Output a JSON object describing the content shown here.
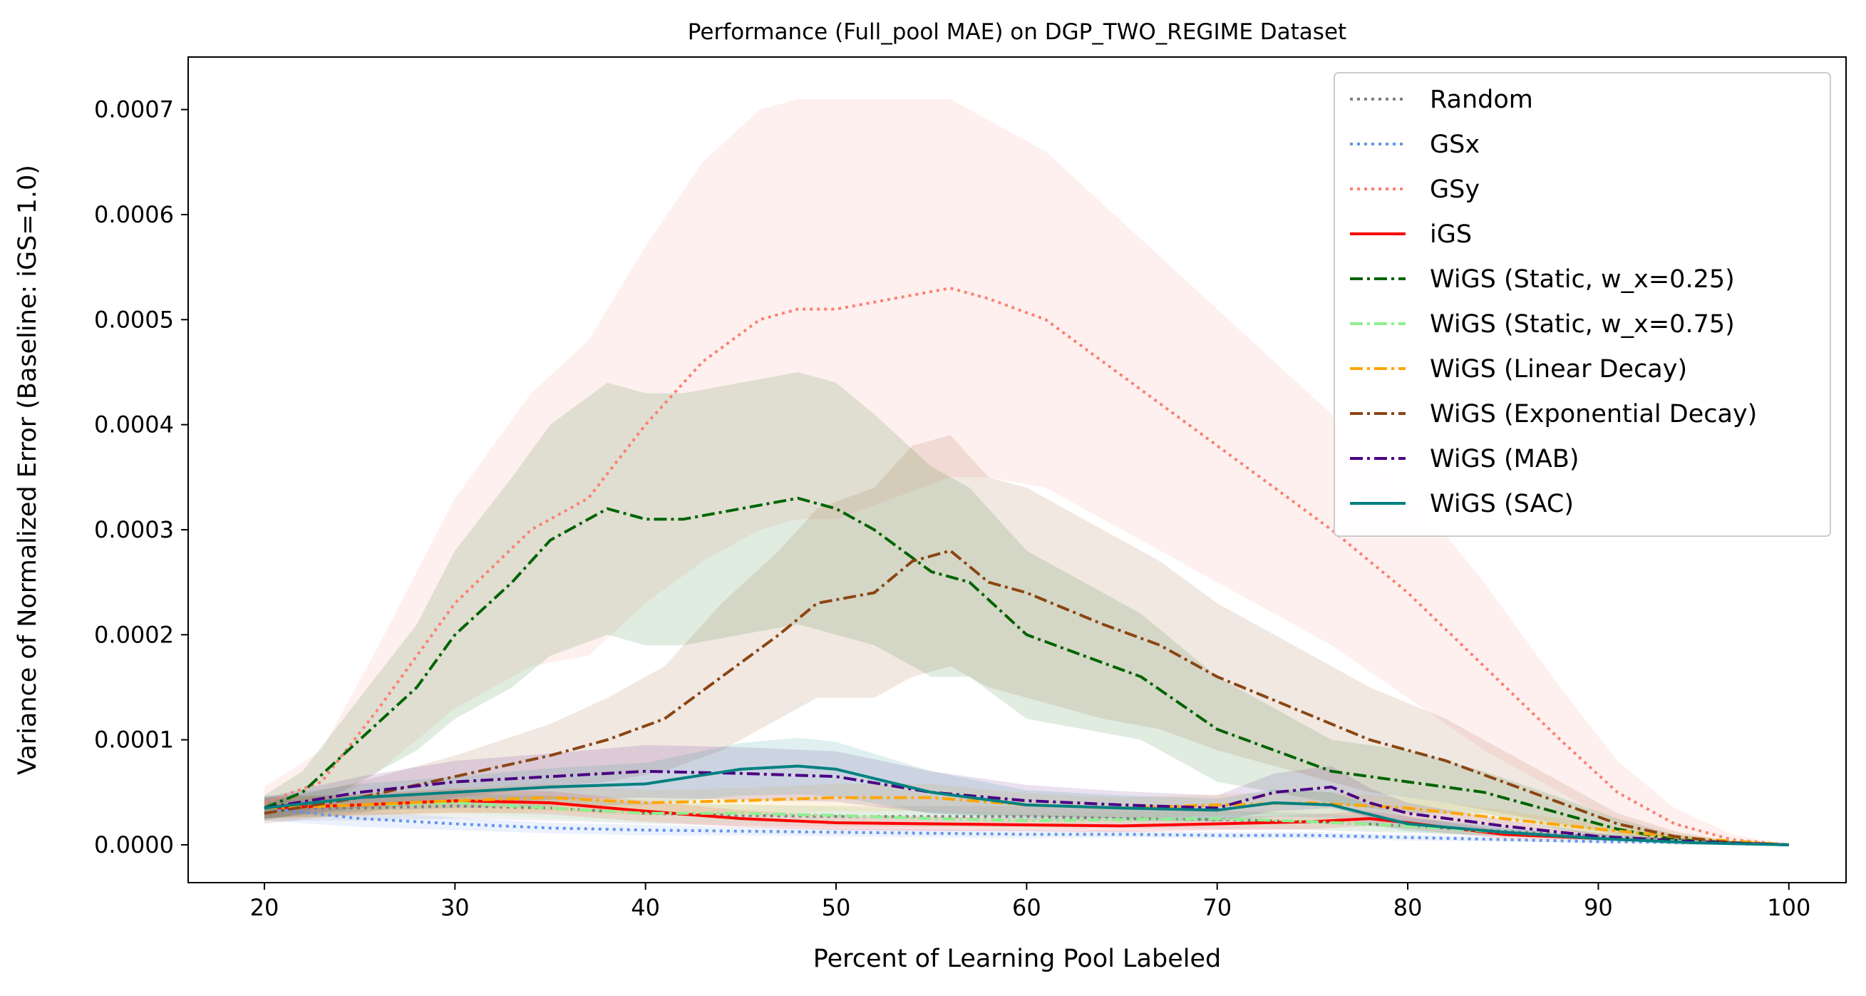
{
  "chart_data": {
    "type": "line",
    "title": "Performance (Full_pool MAE) on DGP_TWO_REGIME Dataset",
    "xlabel": "Percent of Learning Pool Labeled",
    "ylabel": "Variance of Normalized Error (Baseline: iGS=1.0)",
    "xlim": [
      16,
      103
    ],
    "ylim": [
      -3.6e-05,
      0.00075
    ],
    "x_ticks": [
      20,
      30,
      40,
      50,
      60,
      70,
      80,
      90,
      100
    ],
    "x_tick_labels": [
      "20",
      "30",
      "40",
      "50",
      "60",
      "70",
      "80",
      "90",
      "100"
    ],
    "y_ticks": [
      0,
      0.0001,
      0.0002,
      0.0003,
      0.0004,
      0.0005,
      0.0006,
      0.0007
    ],
    "y_tick_labels": [
      "0.0000",
      "0.0001",
      "0.0002",
      "0.0003",
      "0.0004",
      "0.0005",
      "0.0006",
      "0.0007"
    ],
    "grid": false,
    "legend_position": "top-right",
    "series": [
      {
        "name": "Random",
        "color": "#808080",
        "dash": "dotted",
        "x": [
          20,
          25,
          30,
          35,
          40,
          45,
          50,
          55,
          60,
          65,
          70,
          75,
          80,
          85,
          90,
          95,
          100
        ],
        "y": [
          3.5e-05,
          3.5e-05,
          3.7e-05,
          3.5e-05,
          3e-05,
          2.8e-05,
          2.7e-05,
          2.7e-05,
          2.7e-05,
          2.5e-05,
          2.4e-05,
          2.2e-05,
          1.8e-05,
          1.3e-05,
          8e-06,
          4e-06,
          0.0
        ],
        "band": [
          1.2e-05,
          1.2e-05,
          1.2e-05,
          1.2e-05,
          1e-05,
          1e-05,
          1e-05,
          1e-05,
          1e-05,
          9e-06,
          9e-06,
          8e-06,
          7e-06,
          5e-06,
          3e-06,
          2e-06,
          0.0
        ]
      },
      {
        "name": "GSx",
        "color": "#6495ED",
        "dash": "dotted",
        "x": [
          20,
          25,
          30,
          35,
          40,
          45,
          50,
          55,
          60,
          65,
          70,
          75,
          80,
          85,
          90,
          95,
          100
        ],
        "y": [
          3.5e-05,
          2.5e-05,
          2e-05,
          1.6e-05,
          1.4e-05,
          1.3e-05,
          1.2e-05,
          1.1e-05,
          1e-05,
          1e-05,
          9e-06,
          9e-06,
          7e-06,
          5e-06,
          3e-06,
          2e-06,
          0.0
        ],
        "band": [
          1.2e-05,
          8e-06,
          6e-06,
          5e-06,
          5e-06,
          4e-06,
          4e-06,
          4e-06,
          4e-06,
          3e-06,
          3e-06,
          3e-06,
          3e-06,
          2e-06,
          1e-06,
          1e-06,
          0.0
        ]
      },
      {
        "name": "GSy",
        "color": "#FA8072",
        "dash": "dotted",
        "x": [
          20,
          23,
          26,
          30,
          34,
          37,
          40,
          43,
          46,
          48,
          50,
          53,
          56,
          58,
          61,
          64,
          67,
          70,
          73,
          76,
          80,
          84,
          88,
          91,
          94,
          97,
          100
        ],
        "y": [
          4e-05,
          6e-05,
          0.00013,
          0.00023,
          0.0003,
          0.00033,
          0.0004,
          0.00046,
          0.0005,
          0.00051,
          0.00051,
          0.00052,
          0.00053,
          0.00052,
          0.0005,
          0.00046,
          0.00042,
          0.00038,
          0.00034,
          0.0003,
          0.00024,
          0.00017,
          0.0001,
          5e-05,
          2e-05,
          5e-06,
          0.0
        ],
        "band": [
          1.5e-05,
          3e-05,
          6e-05,
          0.0001,
          0.00013,
          0.00015,
          0.00017,
          0.00019,
          0.0002,
          0.0002,
          0.0002,
          0.00019,
          0.00018,
          0.00017,
          0.00016,
          0.00015,
          0.00014,
          0.00013,
          0.00012,
          0.00011,
          0.0001,
          8e-05,
          5e-05,
          3e-05,
          1.5e-05,
          5e-06,
          0.0
        ]
      },
      {
        "name": "iGS",
        "color": "#FF0000",
        "dash": "solid",
        "x": [
          20,
          25,
          30,
          35,
          40,
          45,
          50,
          55,
          60,
          65,
          70,
          75,
          78,
          80,
          85,
          90,
          95,
          100
        ],
        "y": [
          3.5e-05,
          3.8e-05,
          4.2e-05,
          4e-05,
          3.2e-05,
          2.5e-05,
          2.1e-05,
          2e-05,
          1.9e-05,
          1.8e-05,
          2e-05,
          2.2e-05,
          2.5e-05,
          2.1e-05,
          1e-05,
          6e-06,
          3e-06,
          0.0
        ],
        "band": [
          1e-05,
          1e-05,
          1.1e-05,
          1.1e-05,
          1e-05,
          8e-06,
          7e-06,
          7e-06,
          6e-06,
          6e-06,
          6e-06,
          7e-06,
          7e-06,
          6e-06,
          4e-06,
          2e-06,
          1e-06,
          0.0
        ]
      },
      {
        "name": "WiGS (Static, w_x=0.25)",
        "color": "#006400",
        "dash": "dashdot",
        "x": [
          20,
          22,
          25,
          28,
          30,
          33,
          35,
          38,
          40,
          42,
          45,
          48,
          50,
          52,
          55,
          57,
          60,
          63,
          66,
          70,
          73,
          76,
          80,
          84,
          88,
          91,
          94,
          97,
          100
        ],
        "y": [
          3.5e-05,
          5e-05,
          0.0001,
          0.00015,
          0.0002,
          0.00025,
          0.00029,
          0.00032,
          0.00031,
          0.00031,
          0.00032,
          0.00033,
          0.00032,
          0.0003,
          0.00026,
          0.00025,
          0.0002,
          0.00018,
          0.00016,
          0.00011,
          9e-05,
          7e-05,
          6e-05,
          5e-05,
          3e-05,
          1.5e-05,
          5e-06,
          2e-06,
          0.0
        ],
        "band": [
          1.2e-05,
          2e-05,
          4e-05,
          6e-05,
          8e-05,
          0.0001,
          0.00011,
          0.00012,
          0.00012,
          0.00012,
          0.00012,
          0.00012,
          0.00012,
          0.00011,
          0.0001,
          9e-05,
          8e-05,
          7e-05,
          6e-05,
          5e-05,
          4e-05,
          3e-05,
          3e-05,
          2e-05,
          1.5e-05,
          1e-05,
          5e-06,
          2e-06,
          0.0
        ]
      },
      {
        "name": "WiGS (Static, w_x=0.75)",
        "color": "#90EE90",
        "dash": "dashdot",
        "x": [
          20,
          25,
          30,
          35,
          40,
          45,
          50,
          55,
          60,
          65,
          70,
          75,
          80,
          85,
          90,
          95,
          100
        ],
        "y": [
          3.5e-05,
          3.8e-05,
          4e-05,
          3.5e-05,
          3e-05,
          3e-05,
          2.8e-05,
          2.5e-05,
          2.3e-05,
          2.4e-05,
          2.5e-05,
          2.2e-05,
          1.8e-05,
          1.2e-05,
          6e-06,
          3e-06,
          0.0
        ],
        "band": [
          1e-05,
          1e-05,
          1e-05,
          1e-05,
          9e-06,
          9e-06,
          8e-06,
          8e-06,
          7e-06,
          7e-06,
          7e-06,
          7e-06,
          6e-06,
          4e-06,
          2e-06,
          1e-06,
          0.0
        ]
      },
      {
        "name": "WiGS (Linear Decay)",
        "color": "#FFA500",
        "dash": "dashdot",
        "x": [
          20,
          25,
          30,
          35,
          40,
          45,
          50,
          55,
          60,
          65,
          70,
          75,
          80,
          85,
          90,
          95,
          100
        ],
        "y": [
          3.5e-05,
          3.8e-05,
          4.2e-05,
          4.5e-05,
          4e-05,
          4.2e-05,
          4.5e-05,
          4.5e-05,
          3.8e-05,
          3.5e-05,
          3.8e-05,
          4e-05,
          3.5e-05,
          2.5e-05,
          1.5e-05,
          6e-06,
          0.0
        ],
        "band": [
          1e-05,
          1e-05,
          1.2e-05,
          1.3e-05,
          1.2e-05,
          1.2e-05,
          1.3e-05,
          1.3e-05,
          1.1e-05,
          1e-05,
          1e-05,
          1.1e-05,
          1e-05,
          8e-06,
          5e-06,
          2e-06,
          0.0
        ]
      },
      {
        "name": "WiGS (Exponential Decay)",
        "color": "#8B4513",
        "dash": "dashdot",
        "x": [
          20,
          25,
          30,
          35,
          38,
          41,
          44,
          47,
          49,
          52,
          54,
          56,
          58,
          60,
          64,
          67,
          70,
          74,
          78,
          82,
          85,
          88,
          91,
          94,
          97,
          100
        ],
        "y": [
          3e-05,
          4.5e-05,
          6.5e-05,
          8.5e-05,
          0.0001,
          0.00012,
          0.00016,
          0.0002,
          0.00023,
          0.00024,
          0.00027,
          0.00028,
          0.00025,
          0.00024,
          0.00021,
          0.00019,
          0.00016,
          0.00013,
          0.0001,
          8e-05,
          6e-05,
          4e-05,
          2e-05,
          8e-06,
          2e-06,
          0.0
        ],
        "band": [
          1e-05,
          1.5e-05,
          2e-05,
          3e-05,
          4e-05,
          5e-05,
          7e-05,
          8e-05,
          9e-05,
          0.0001,
          0.00011,
          0.00011,
          0.0001,
          0.0001,
          9e-05,
          8e-05,
          7e-05,
          6e-05,
          5e-05,
          4e-05,
          3e-05,
          2e-05,
          1e-05,
          5e-06,
          1e-06,
          0.0
        ]
      },
      {
        "name": "WiGS (MAB)",
        "color": "#4B0082",
        "dash": "dashdot",
        "x": [
          20,
          25,
          30,
          35,
          40,
          45,
          50,
          55,
          60,
          65,
          70,
          73,
          76,
          78,
          80,
          85,
          90,
          95,
          100
        ],
        "y": [
          3.5e-05,
          5e-05,
          6e-05,
          6.5e-05,
          7e-05,
          6.8e-05,
          6.5e-05,
          5e-05,
          4.2e-05,
          3.8e-05,
          3.5e-05,
          5e-05,
          5.5e-05,
          4e-05,
          3e-05,
          1.8e-05,
          8e-06,
          3e-06,
          0.0
        ],
        "band": [
          1e-05,
          1.5e-05,
          2e-05,
          2.2e-05,
          2.5e-05,
          2.5e-05,
          2.4e-05,
          2e-05,
          1.5e-05,
          1.3e-05,
          1.2e-05,
          1.8e-05,
          2e-05,
          1.4e-05,
          1e-05,
          6e-06,
          3e-06,
          1e-06,
          0.0
        ]
      },
      {
        "name": "WiGS (SAC)",
        "color": "#008080",
        "dash": "solid",
        "x": [
          20,
          25,
          30,
          35,
          40,
          45,
          48,
          50,
          55,
          60,
          65,
          70,
          73,
          76,
          80,
          85,
          90,
          95,
          100
        ],
        "y": [
          3.5e-05,
          4.5e-05,
          5e-05,
          5.5e-05,
          5.8e-05,
          7.2e-05,
          7.5e-05,
          7.2e-05,
          5e-05,
          3.8e-05,
          3.5e-05,
          3.3e-05,
          4e-05,
          3.8e-05,
          2e-05,
          1.2e-05,
          6e-06,
          2e-06,
          0.0
        ],
        "band": [
          1e-05,
          1.3e-05,
          1.5e-05,
          1.8e-05,
          2e-05,
          2.5e-05,
          2.7e-05,
          2.6e-05,
          2e-05,
          1.4e-05,
          1.2e-05,
          1.1e-05,
          1.3e-05,
          1.2e-05,
          7e-06,
          4e-06,
          2e-06,
          1e-06,
          0.0
        ]
      }
    ]
  }
}
